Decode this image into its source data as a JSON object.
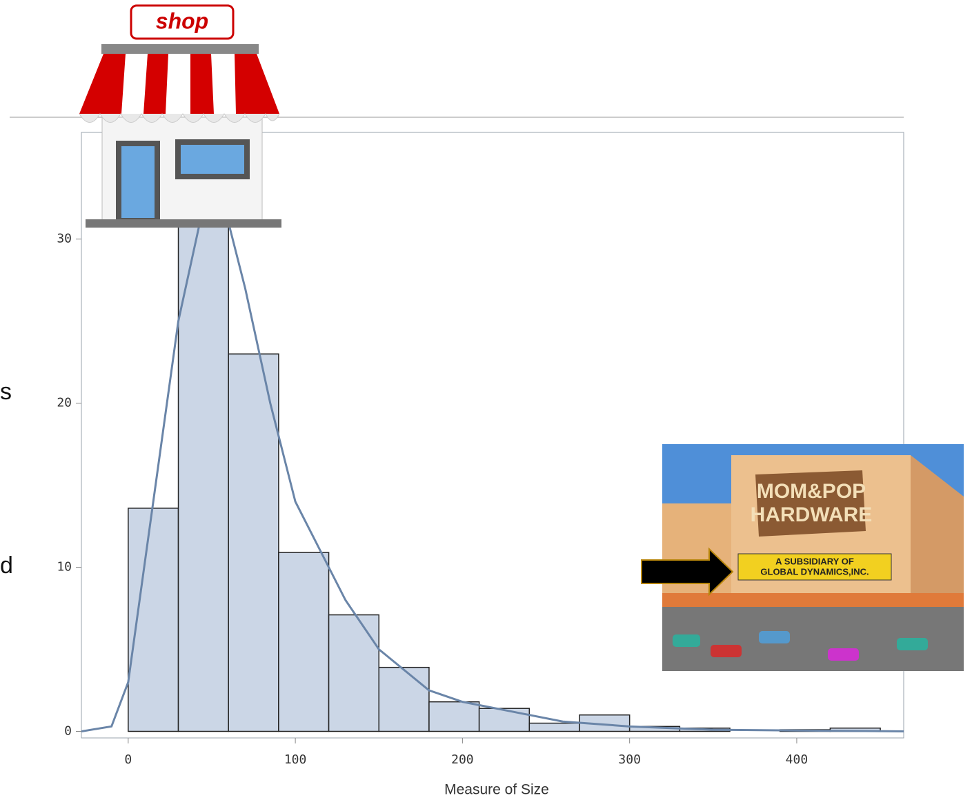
{
  "chart_data": {
    "type": "histogram",
    "bins": [
      0,
      30,
      60,
      90,
      120,
      150,
      180,
      210,
      240,
      270,
      300,
      330,
      360,
      390,
      420,
      450
    ],
    "values": [
      13.6,
      32,
      23,
      10.9,
      7.1,
      3.9,
      1.8,
      1.4,
      0.5,
      1.0,
      0.3,
      0.2,
      0,
      0.1,
      0.2
    ],
    "color": "#cbd6e6",
    "density": {
      "color": "#6a85a8",
      "x": [
        -28,
        -10,
        0,
        15,
        30,
        45,
        55,
        70,
        85,
        100,
        115,
        130,
        150,
        180,
        200,
        230,
        260,
        300,
        350,
        400,
        464
      ],
      "values": [
        0.0,
        0.3,
        3,
        14,
        25,
        32,
        33,
        27,
        20,
        14,
        11,
        8,
        5,
        2.5,
        1.8,
        1.2,
        0.6,
        0.3,
        0.1,
        0.05,
        0.0
      ]
    },
    "xlabel": "Measure of Size",
    "xlim": [
      -28,
      464
    ],
    "xticks": [
      0,
      100,
      200,
      300,
      400
    ],
    "ylim": [
      -0.4,
      36.5
    ],
    "yticks": [
      0,
      10,
      20,
      30
    ]
  },
  "side_text": [
    "s",
    "d"
  ],
  "shop_sign": "shop",
  "hardware_sign": [
    "MOM&POP",
    "HARDWARE"
  ],
  "subsidiary_sign": [
    "A SUBSIDIARY OF",
    "GLOBAL DYNAMICS,INC."
  ]
}
